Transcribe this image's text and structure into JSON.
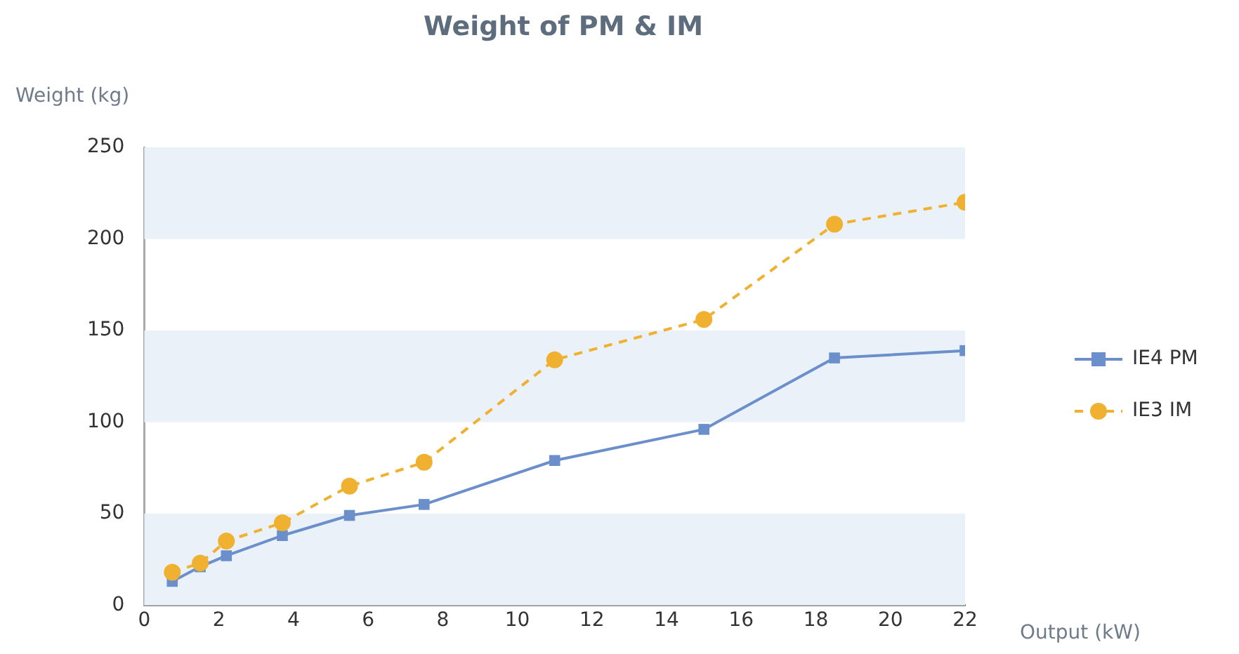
{
  "chart_data": {
    "type": "line",
    "title": "Weight of PM & IM",
    "xlabel": "Output (kW)",
    "ylabel": "Weight (kg)",
    "x": [
      0.75,
      1.5,
      2.2,
      3.7,
      5.5,
      7.5,
      11,
      15,
      18.5,
      22
    ],
    "series": [
      {
        "name": "IE4 PM",
        "color": "#6a8fcb",
        "marker": "square",
        "line_style": "solid",
        "values": [
          13,
          21,
          27,
          38,
          49,
          55,
          79,
          96,
          135,
          139
        ]
      },
      {
        "name": "IE3 IM",
        "color": "#f0b030",
        "marker": "circle",
        "line_style": "dashed",
        "values": [
          18,
          23,
          35,
          45,
          65,
          78,
          134,
          156,
          208,
          220
        ]
      }
    ],
    "xlim": [
      0,
      22
    ],
    "xticks": [
      0,
      2,
      4,
      6,
      8,
      10,
      12,
      14,
      16,
      18,
      20,
      22
    ],
    "ylim": [
      0,
      250
    ],
    "yticks": [
      0,
      50,
      100,
      150,
      200,
      250
    ],
    "bands": [
      {
        "axis": "y",
        "from": 0,
        "to": 50,
        "color": "#eaf1f9"
      },
      {
        "axis": "y",
        "from": 100,
        "to": 150,
        "color": "#eaf1f9"
      },
      {
        "axis": "y",
        "from": 200,
        "to": 250,
        "color": "#eaf1f9"
      }
    ],
    "grid": false,
    "legend": "right"
  }
}
